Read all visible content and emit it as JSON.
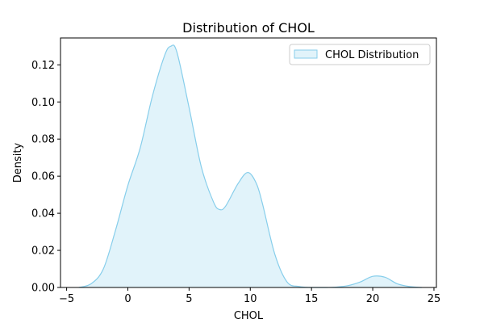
{
  "chart_data": {
    "type": "area",
    "title": "Distribution of CHOL",
    "xlabel": "CHOL",
    "ylabel": "Density",
    "xlim": [
      -5.5,
      25.2
    ],
    "ylim": [
      0,
      0.1345
    ],
    "xticks": [
      -5,
      0,
      5,
      10,
      15,
      20,
      25
    ],
    "xtick_labels": [
      "−5",
      "0",
      "5",
      "10",
      "15",
      "20",
      "25"
    ],
    "yticks": [
      0.0,
      0.02,
      0.04,
      0.06,
      0.08,
      0.1,
      0.12
    ],
    "ytick_labels": [
      "0.00",
      "0.02",
      "0.04",
      "0.06",
      "0.08",
      "0.10",
      "0.12"
    ],
    "grid": false,
    "legend_position": "top-right",
    "series": [
      {
        "name": "CHOL Distribution",
        "line_color": "#87ceeb",
        "fill_color": "#87ceeb",
        "fill_opacity": 0.25,
        "x": [
          -4,
          -3,
          -2,
          -1,
          0,
          1,
          2,
          3,
          3.5,
          4,
          5,
          6,
          7,
          7.5,
          8,
          9,
          9.8,
          10.5,
          11,
          12,
          13,
          14,
          15,
          16,
          17,
          18,
          19,
          20,
          21,
          22,
          23,
          24
        ],
        "y": [
          0.0,
          0.002,
          0.01,
          0.031,
          0.055,
          0.075,
          0.103,
          0.125,
          0.13,
          0.127,
          0.097,
          0.065,
          0.046,
          0.042,
          0.044,
          0.056,
          0.062,
          0.056,
          0.045,
          0.018,
          0.003,
          0.0005,
          0.0,
          0.0,
          0.0002,
          0.001,
          0.003,
          0.006,
          0.0055,
          0.002,
          0.0005,
          0.0
        ]
      }
    ]
  }
}
